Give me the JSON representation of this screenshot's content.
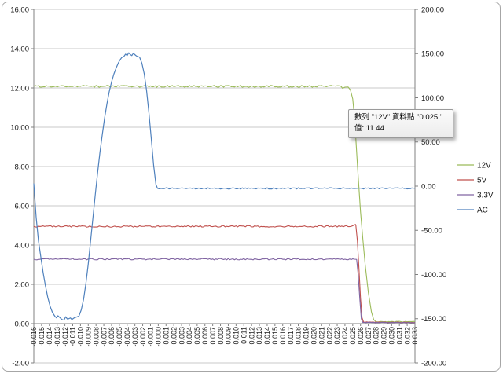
{
  "canvas": {
    "background": "#ffffff",
    "border_color": "#a6a6a6",
    "gridline_color": "#c9c9c9",
    "axis_line_color": "#808080",
    "label_color": "#1a1a1a"
  },
  "chart_data": {
    "type": "line",
    "title": "",
    "xlabel": "",
    "ylabel": "",
    "grid": true,
    "legend_position": "right",
    "x_axis": {
      "labels": [
        "-0.016",
        "-0.015",
        "-0.014",
        "-0.013",
        "-0.012",
        "-0.011",
        "-0.010",
        "-0.009",
        "-0.008",
        "-0.007",
        "-0.006",
        "-0.005",
        "-0.004",
        "-0.003",
        "-0.002",
        "-0.001",
        "-0.000",
        "0.001",
        "0.002",
        "0.003",
        "0.004",
        "0.005",
        "0.006",
        "0.007",
        "0.008",
        "0.009",
        "0.010",
        "0.011",
        "0.012",
        "0.013",
        "0.014",
        "0.015",
        "0.016",
        "0.017",
        "0.018",
        "0.019",
        "0.020",
        "0.021",
        "0.022",
        "0.023",
        "0.024",
        "0.025",
        "0.026",
        "0.027",
        "0.028",
        "0.029",
        "0.030",
        "0.031",
        "0.032",
        "0.033"
      ],
      "min": -0.016,
      "max": 0.033,
      "rotated_labels": true
    },
    "y_axis_left": {
      "min": -2.0,
      "max": 16.0,
      "step": 2.0,
      "tick_labels": [
        "16.00",
        "14.00",
        "12.00",
        "10.00",
        "8.00",
        "6.00",
        "4.00",
        "2.00",
        "0.00",
        "-2.00"
      ],
      "crosses_at": 0.0
    },
    "y_axis_right": {
      "min": -200.0,
      "max": 200.0,
      "step": 50.0,
      "tick_labels": [
        "200.00",
        "150.00",
        "100.00",
        "50.00",
        "0.00",
        "-50.00",
        "-100.00",
        "-150.00",
        "-200.00"
      ]
    },
    "series": [
      {
        "name": "12V",
        "color": "#9BBB59",
        "axis": "left",
        "width": 1.1,
        "points": [
          [
            -0.016,
            12.08,
            0.05
          ],
          [
            0.0235,
            12.08
          ],
          [
            0.0237,
            11.98
          ],
          [
            0.024,
            12.04
          ],
          [
            0.0244,
            12.05
          ],
          [
            0.0247,
            11.9
          ],
          [
            0.025,
            11.44
          ],
          [
            0.0252,
            10.6
          ],
          [
            0.0254,
            9.4
          ],
          [
            0.0256,
            8.1
          ],
          [
            0.0258,
            6.9
          ],
          [
            0.026,
            5.7
          ],
          [
            0.0263,
            4.3
          ],
          [
            0.0266,
            3.0
          ],
          [
            0.027,
            1.6
          ],
          [
            0.0274,
            0.6
          ],
          [
            0.0277,
            0.2
          ],
          [
            0.028,
            0.09,
            0.02
          ],
          [
            0.033,
            0.1
          ]
        ]
      },
      {
        "name": "5V",
        "color": "#C0504D",
        "axis": "left",
        "width": 1.1,
        "points": [
          [
            -0.016,
            4.95,
            0.04
          ],
          [
            0.0248,
            4.95
          ],
          [
            0.0251,
            5.0
          ],
          [
            0.02535,
            5.05
          ],
          [
            0.0254,
            5.0
          ],
          [
            0.0256,
            4.2
          ],
          [
            0.0258,
            2.8
          ],
          [
            0.026,
            1.3
          ],
          [
            0.0262,
            0.3
          ],
          [
            0.0264,
            0.08,
            0.015
          ],
          [
            0.033,
            0.06
          ]
        ]
      },
      {
        "name": "3.3V",
        "color": "#8064A2",
        "axis": "left",
        "width": 1.1,
        "points": [
          [
            -0.016,
            3.28,
            0.035
          ],
          [
            0.0252,
            3.28
          ],
          [
            0.0255,
            3.27
          ],
          [
            0.0257,
            2.5
          ],
          [
            0.0259,
            1.3
          ],
          [
            0.0261,
            0.25
          ],
          [
            0.0263,
            0.06,
            0.012
          ],
          [
            0.033,
            0.05
          ]
        ]
      },
      {
        "name": "AC",
        "color": "#4F81BD",
        "axis": "right",
        "width": 1.2,
        "points": [
          [
            -0.016,
            3
          ],
          [
            -0.0157,
            -35
          ],
          [
            -0.0154,
            -62
          ],
          [
            -0.0151,
            -80
          ],
          [
            -0.0148,
            -98
          ],
          [
            -0.0145,
            -113
          ],
          [
            -0.0142,
            -126
          ],
          [
            -0.0139,
            -136
          ],
          [
            -0.0136,
            -143
          ],
          [
            -0.0133,
            -147
          ],
          [
            -0.0131,
            -149,
            2.8
          ],
          [
            -0.0125,
            -150,
            2.8
          ],
          [
            -0.0115,
            -150,
            2.8
          ],
          [
            -0.0108,
            -149,
            2.8
          ],
          [
            -0.0102,
            -147,
            2.0
          ],
          [
            -0.0099,
            -140
          ],
          [
            -0.0096,
            -128
          ],
          [
            -0.0093,
            -110
          ],
          [
            -0.009,
            -88
          ],
          [
            -0.0087,
            -62
          ],
          [
            -0.0084,
            -36
          ],
          [
            -0.0081,
            -10
          ],
          [
            -0.0078,
            15
          ],
          [
            -0.0075,
            38
          ],
          [
            -0.0072,
            58
          ],
          [
            -0.0069,
            77
          ],
          [
            -0.0066,
            93
          ],
          [
            -0.0063,
            107
          ],
          [
            -0.006,
            118
          ],
          [
            -0.0057,
            127
          ],
          [
            -0.0054,
            134
          ],
          [
            -0.0051,
            140
          ],
          [
            -0.0049,
            143,
            2.5
          ],
          [
            -0.0044,
            147,
            2.8
          ],
          [
            -0.0036,
            149,
            2.8
          ],
          [
            -0.0029,
            148,
            2.5
          ],
          [
            -0.0024,
            146,
            1.5
          ],
          [
            -0.0021,
            139
          ],
          [
            -0.0018,
            127
          ],
          [
            -0.0015,
            108
          ],
          [
            -0.0012,
            83
          ],
          [
            -0.0009,
            54
          ],
          [
            -0.0006,
            24
          ],
          [
            -0.0003,
            2
          ],
          [
            -0.0001,
            -2.5
          ],
          [
            0.0001,
            -3
          ],
          [
            0.0004,
            -2.6,
            0.7
          ],
          [
            0.033,
            -2.5
          ]
        ]
      }
    ],
    "tooltip": {
      "line1": "數列 \"12V\" 資料點 \"0.025 \"",
      "line2": "值: 11.44",
      "series": "12V",
      "category": "0.025",
      "value": 11.44
    }
  }
}
